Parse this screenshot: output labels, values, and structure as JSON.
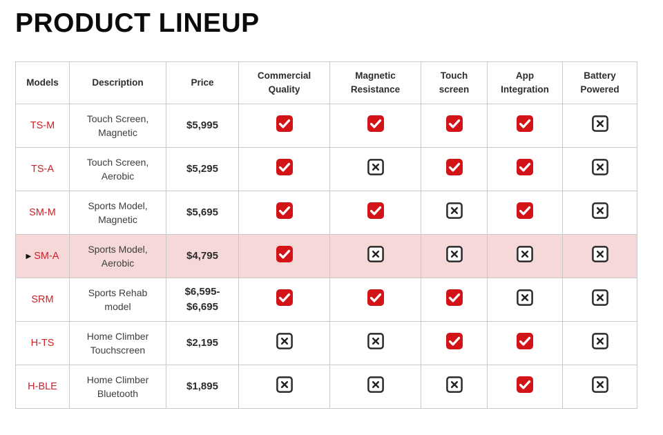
{
  "page_title": "PRODUCT LINEUP",
  "colors": {
    "title_text": "#0b0b0b",
    "header_text": "#2d2d2d",
    "body_text": "#3d3d3d",
    "model_red": "#cc2127",
    "check_red": "#d21418",
    "check_glyph": "#ffffff",
    "cross_border": "#2b2b2b",
    "cross_glyph": "#222222",
    "highlight_pink": "#f6d8d8",
    "grid_border": "#c9c9c9"
  },
  "chart_data": {
    "type": "table",
    "title": "PRODUCT LINEUP",
    "row_marker": "▶",
    "headers": [
      "Models",
      "Description",
      "Price",
      "Commercial\nQuality",
      "Magnetic\nResistance",
      "Touch\nscreen",
      "App\nIntegration",
      "Battery\nPowered"
    ],
    "feature_columns": [
      "Commercial Quality",
      "Magnetic Resistance",
      "Touch screen",
      "App Integration",
      "Battery Powered"
    ],
    "rows": [
      {
        "model": "TS-M",
        "description": "Touch Screen,\nMagnetic",
        "price": "$5,995",
        "features": [
          true,
          true,
          true,
          true,
          false
        ],
        "highlighted": false
      },
      {
        "model": "TS-A",
        "description": "Touch Screen,\nAerobic",
        "price": "$5,295",
        "features": [
          true,
          false,
          true,
          true,
          false
        ],
        "highlighted": false
      },
      {
        "model": "SM-M",
        "description": "Sports Model,\nMagnetic",
        "price": "$5,695",
        "features": [
          true,
          true,
          false,
          true,
          false
        ],
        "highlighted": false
      },
      {
        "model": "SM-A",
        "description": "Sports Model,\nAerobic",
        "price": "$4,795",
        "features": [
          true,
          false,
          false,
          false,
          false
        ],
        "highlighted": true
      },
      {
        "model": "SRM",
        "description": "Sports Rehab\nmodel",
        "price": "$6,595-\n$6,695",
        "features": [
          true,
          true,
          true,
          false,
          false
        ],
        "highlighted": false
      },
      {
        "model": "H-TS",
        "description": "Home Climber\nTouchscreen",
        "price": "$2,195",
        "features": [
          false,
          false,
          true,
          true,
          false
        ],
        "highlighted": false
      },
      {
        "model": "H-BLE",
        "description": "Home Climber\nBluetooth",
        "price": "$1,895",
        "features": [
          false,
          false,
          false,
          true,
          false
        ],
        "highlighted": false
      }
    ]
  }
}
